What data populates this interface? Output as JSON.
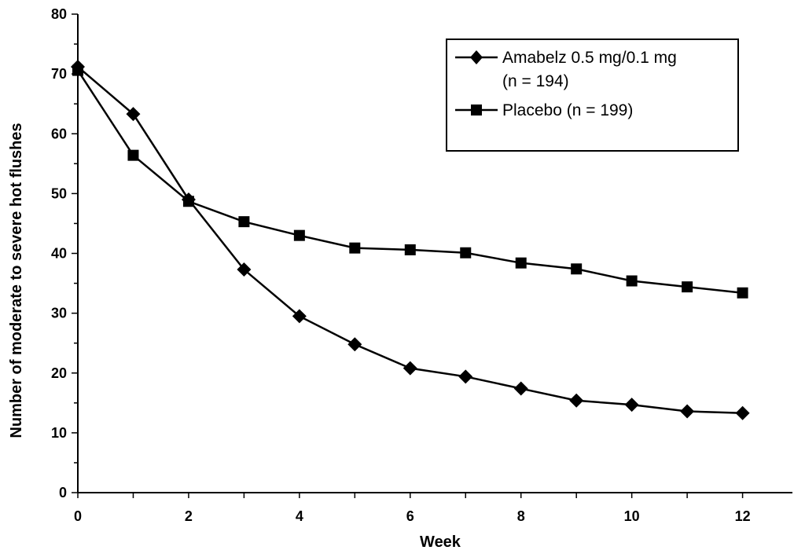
{
  "chart_data": {
    "type": "line",
    "title": "",
    "xlabel": "Week",
    "ylabel": "Number of moderate to severe hot flushes",
    "xlim": [
      0,
      12.9
    ],
    "ylim": [
      0,
      80
    ],
    "x_ticks": [
      0,
      2,
      4,
      6,
      8,
      10,
      12
    ],
    "y_ticks": [
      0,
      10,
      20,
      30,
      40,
      50,
      60,
      70,
      80
    ],
    "grid": false,
    "legend_position": "top-right",
    "series": [
      {
        "name": "Amabelz 0.5 mg/0.1 mg",
        "name_line2": "(n  = 194)",
        "marker": "diamond",
        "color": "#000000",
        "x": [
          0,
          1,
          2,
          3,
          4,
          5,
          6,
          7,
          8,
          9,
          10,
          11,
          12
        ],
        "values": [
          71.2,
          63.3,
          49.0,
          37.3,
          29.5,
          24.8,
          20.8,
          19.4,
          17.4,
          15.4,
          14.7,
          13.6,
          13.3
        ]
      },
      {
        "name": "Placebo (n  = 199)",
        "marker": "square",
        "color": "#000000",
        "x": [
          0,
          1,
          2,
          3,
          4,
          5,
          6,
          7,
          8,
          9,
          10,
          11,
          12
        ],
        "values": [
          70.6,
          56.4,
          48.7,
          45.3,
          43.0,
          40.9,
          40.6,
          40.1,
          38.4,
          37.4,
          35.4,
          34.4,
          33.4
        ]
      }
    ]
  }
}
